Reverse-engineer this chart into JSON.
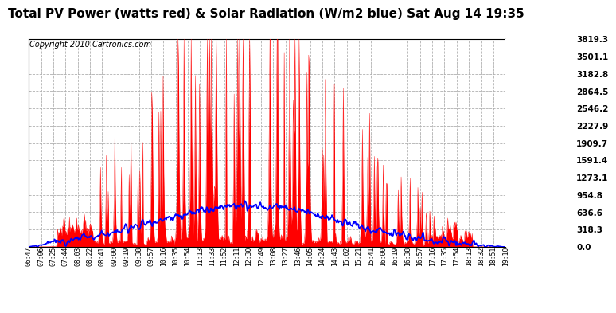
{
  "title": "Total PV Power (watts red) & Solar Radiation (W/m2 blue) Sat Aug 14 19:35",
  "copyright": "Copyright 2010 Cartronics.com",
  "background_color": "#ffffff",
  "plot_bg_color": "#ffffff",
  "grid_color": "#b0b0b0",
  "y_ticks": [
    0.0,
    318.3,
    636.6,
    954.8,
    1273.1,
    1591.4,
    1909.7,
    2227.9,
    2546.2,
    2864.5,
    3182.8,
    3501.1,
    3819.3
  ],
  "ylim": [
    0,
    3819.3
  ],
  "x_labels": [
    "06:47",
    "07:06",
    "07:25",
    "07:44",
    "08:03",
    "08:22",
    "08:41",
    "09:00",
    "09:19",
    "09:38",
    "09:57",
    "10:16",
    "10:35",
    "10:54",
    "11:13",
    "11:33",
    "11:52",
    "12:11",
    "12:30",
    "12:49",
    "13:08",
    "13:27",
    "13:46",
    "14:05",
    "14:24",
    "14:43",
    "15:02",
    "15:21",
    "15:41",
    "16:00",
    "16:19",
    "16:38",
    "16:57",
    "17:16",
    "17:35",
    "17:54",
    "18:13",
    "18:32",
    "18:51",
    "19:10"
  ],
  "pv_color": "#ff0000",
  "solar_color": "#0000ff",
  "title_fontsize": 11,
  "copyright_fontsize": 7
}
